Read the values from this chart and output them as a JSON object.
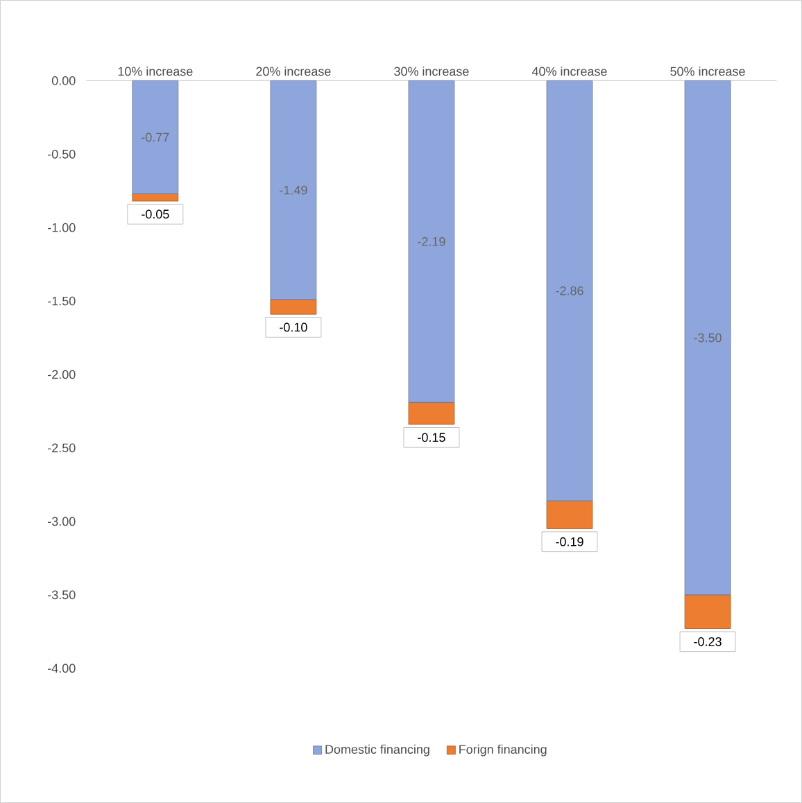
{
  "chart_data": {
    "type": "bar",
    "stacked": true,
    "categories": [
      "10% increase",
      "20% increase",
      "30% increase",
      "40% increase",
      "50% increase"
    ],
    "series": [
      {
        "name": "Domestic financing",
        "color": "#8fa6dd",
        "values": [
          -0.77,
          -1.49,
          -2.19,
          -2.86,
          -3.5
        ],
        "value_labels": [
          "-0.77",
          "-1.49",
          "-2.19",
          "-2.86",
          "-3.50"
        ]
      },
      {
        "name": "Forign financing",
        "color": "#ed7d31",
        "values": [
          -0.05,
          -0.1,
          -0.15,
          -0.19,
          -0.23
        ],
        "value_labels": [
          "-0.05",
          "-0.10",
          "-0.15",
          "-0.19",
          "-0.23"
        ]
      }
    ],
    "ylim": [
      -4,
      0
    ],
    "yticks": [
      {
        "value": 0,
        "label": "0.00"
      },
      {
        "value": -0.5,
        "label": "-0.50"
      },
      {
        "value": -1,
        "label": "-1.00"
      },
      {
        "value": -1.5,
        "label": "-1.50"
      },
      {
        "value": -2,
        "label": "-2.00"
      },
      {
        "value": -2.5,
        "label": "-2.50"
      },
      {
        "value": -3,
        "label": "-3.00"
      },
      {
        "value": -3.5,
        "label": "-3.50"
      },
      {
        "value": -4,
        "label": "-4.00"
      }
    ],
    "legend": "bottom"
  }
}
